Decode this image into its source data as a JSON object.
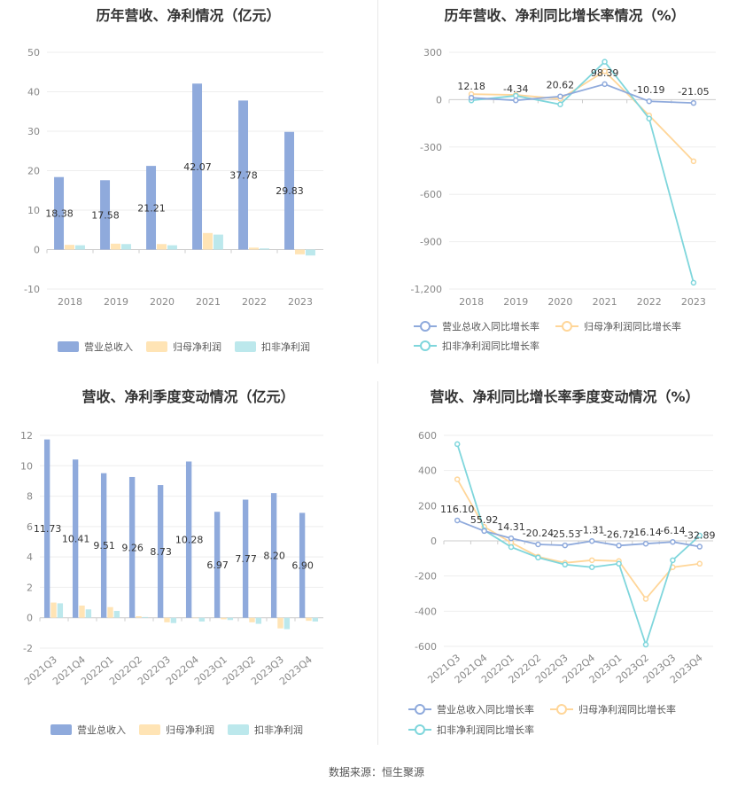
{
  "source_text": "数据来源：恒生聚源",
  "colors": {
    "revenue": "#8faadc",
    "netprofit": "#ffe4b5",
    "deducted": "#bce8ec",
    "revenue_line": "#8faadc",
    "netprofit_line": "#ffd699",
    "deducted_line": "#7fd6dc"
  },
  "chart_data": [
    {
      "type": "bar",
      "title": "历年营收、净利情况（亿元）",
      "categories": [
        "2018",
        "2019",
        "2020",
        "2021",
        "2022",
        "2023"
      ],
      "ylim": [
        -10,
        50
      ],
      "yticks": [
        -10,
        0,
        10,
        20,
        30,
        40,
        50
      ],
      "series": [
        {
          "name": "营业总收入",
          "values": [
            18.38,
            17.58,
            21.21,
            42.07,
            37.78,
            29.83
          ]
        },
        {
          "name": "归母净利润",
          "values": [
            1.2,
            1.5,
            1.4,
            4.2,
            0.5,
            -1.2
          ]
        },
        {
          "name": "扣非净利润",
          "values": [
            1.1,
            1.4,
            1.1,
            3.8,
            0.3,
            -1.5
          ]
        }
      ],
      "data_labels": [
        "18.38",
        "17.58",
        "21.21",
        "42.07",
        "37.78",
        "29.83"
      ],
      "legend": "bottom",
      "grid": true
    },
    {
      "type": "line",
      "title": "历年营收、净利同比增长率情况（%）",
      "categories": [
        "2018",
        "2019",
        "2020",
        "2021",
        "2022",
        "2023"
      ],
      "ylim": [
        -1200,
        300
      ],
      "yticks": [
        -1200,
        -900,
        -600,
        -300,
        0,
        300
      ],
      "series": [
        {
          "name": "营业总收入同比增长率",
          "values": [
            12.18,
            -4.34,
            20.62,
            98.39,
            -10.19,
            -21.05
          ]
        },
        {
          "name": "归母净利润同比增长率",
          "values": [
            35,
            30,
            5,
            180,
            -100,
            -390
          ]
        },
        {
          "name": "扣非净利润同比增长率",
          "values": [
            -5,
            25,
            -30,
            240,
            -120,
            -1160
          ]
        }
      ],
      "data_labels": [
        "12.18",
        "-4.34",
        "20.62",
        "98.39",
        "-10.19",
        "-21.05"
      ],
      "legend": "bottom",
      "grid": true
    },
    {
      "type": "bar",
      "title": "营收、净利季度变动情况（亿元）",
      "categories": [
        "2021Q3",
        "2021Q4",
        "2022Q1",
        "2022Q2",
        "2022Q3",
        "2022Q4",
        "2023Q1",
        "2023Q2",
        "2023Q3",
        "2023Q4"
      ],
      "ylim": [
        -2,
        12
      ],
      "yticks": [
        -2,
        0,
        2,
        4,
        6,
        8,
        10,
        12
      ],
      "series": [
        {
          "name": "营业总收入",
          "values": [
            11.73,
            10.41,
            9.51,
            9.26,
            8.73,
            10.28,
            6.97,
            7.77,
            8.2,
            6.9
          ]
        },
        {
          "name": "归母净利润",
          "values": [
            1.0,
            0.8,
            0.7,
            0.1,
            -0.3,
            0.0,
            -0.1,
            -0.3,
            -0.7,
            -0.2
          ]
        },
        {
          "name": "扣非净利润",
          "values": [
            0.95,
            0.55,
            0.45,
            0.05,
            -0.35,
            -0.25,
            -0.15,
            -0.4,
            -0.75,
            -0.25
          ]
        }
      ],
      "data_labels": [
        "11.73",
        "10.41",
        "9.51",
        "9.26",
        "8.73",
        "10.28",
        "6.97",
        "7.77",
        "8.20",
        "6.90"
      ],
      "legend": "bottom",
      "grid": true
    },
    {
      "type": "line",
      "title": "营收、净利同比增长率季度变动情况（%）",
      "categories": [
        "2021Q3",
        "2021Q4",
        "2022Q1",
        "2022Q2",
        "2022Q3",
        "2022Q4",
        "2023Q1",
        "2023Q2",
        "2023Q3",
        "2023Q4"
      ],
      "ylim": [
        -600,
        600
      ],
      "yticks": [
        -600,
        -400,
        -200,
        0,
        200,
        400,
        600
      ],
      "series": [
        {
          "name": "营业总收入同比增长率",
          "values": [
            116.1,
            55.92,
            14.31,
            -20.24,
            -25.53,
            -1.31,
            -26.72,
            -16.14,
            -6.14,
            -32.89
          ]
        },
        {
          "name": "归母净利润同比增长率",
          "values": [
            350,
            80,
            -10,
            -90,
            -125,
            -110,
            -115,
            -330,
            -150,
            -130
          ]
        },
        {
          "name": "扣非净利润同比增长率",
          "values": [
            550,
            60,
            -35,
            -95,
            -135,
            -150,
            -130,
            -590,
            -110,
            30
          ]
        }
      ],
      "data_labels": [
        "116.10",
        "55.92",
        "14.31",
        "-20.24",
        "-25.53",
        "-1.31",
        "-26.72",
        "-16.14",
        "-6.14",
        "-32.89"
      ],
      "legend": "bottom",
      "grid": true
    }
  ]
}
